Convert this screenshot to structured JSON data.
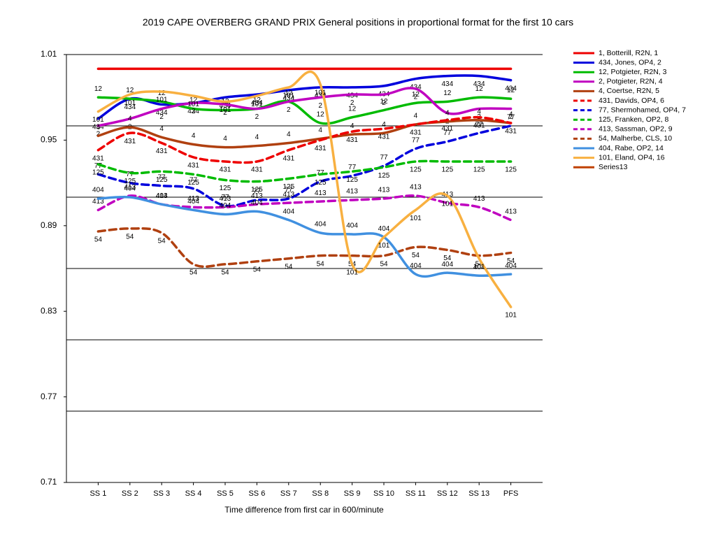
{
  "chart_data": {
    "type": "line",
    "title": "2019 CAPE OVERBERG GRAND PRIX  General positions in proportional format for the first 10 cars",
    "x_label": "Time difference from first car in 600/minute",
    "categories": [
      "SS 1",
      "SS 2",
      "SS 3",
      "SS 4",
      "SS 5",
      "SS 6",
      "SS 7",
      "SS 8",
      "SS 9",
      "SS 10",
      "SS 11",
      "SS 12",
      "SS 13",
      "PFS"
    ],
    "ylim": [
      0.71,
      1.01
    ],
    "yticks": [
      0.71,
      0.77,
      0.83,
      0.89,
      0.95,
      1.01
    ],
    "ygrid": [
      0.76,
      0.81,
      0.86,
      0.91,
      0.96,
      1.01
    ],
    "legend": "right",
    "series": [
      {
        "name": "1, Botterill, R2N, 1",
        "color": "#ee0000",
        "dash": false,
        "values": [
          1.0,
          1.0,
          1.0,
          1.0,
          1.0,
          1.0,
          1.0,
          1.0,
          1.0,
          1.0,
          1.0,
          1.0,
          1.0,
          1.0
        ]
      },
      {
        "name": "434, Jones, OP4, 2",
        "color": "#0000dd",
        "dash": false,
        "point_label": "434",
        "values": [
          0.965,
          0.979,
          0.975,
          0.976,
          0.98,
          0.982,
          0.985,
          0.987,
          0.987,
          0.988,
          0.993,
          0.995,
          0.995,
          0.992
        ]
      },
      {
        "name": "12, Potgieter, R2N, 3",
        "color": "#00bb00",
        "dash": false,
        "point_label": "12",
        "values": [
          0.98,
          0.979,
          0.977,
          0.972,
          0.971,
          0.972,
          0.977,
          0.962,
          0.966,
          0.971,
          0.976,
          0.977,
          0.98,
          0.979
        ]
      },
      {
        "name": "2, Potgieter, R2N, 4",
        "color": "#c000c0",
        "dash": false,
        "point_label": "2",
        "values": [
          0.96,
          0.965,
          0.972,
          0.976,
          0.975,
          0.972,
          0.977,
          0.98,
          0.982,
          0.982,
          0.986,
          0.969,
          0.972,
          0.972
        ]
      },
      {
        "name": "4, Coertse, R2N, 5",
        "color": "#b04010",
        "dash": false,
        "point_label": "4",
        "values": [
          0.953,
          0.959,
          0.952,
          0.947,
          0.945,
          0.946,
          0.948,
          0.951,
          0.954,
          0.955,
          0.961,
          0.963,
          0.964,
          0.962
        ]
      },
      {
        "name": "431, Davids, OP4, 6",
        "color": "#ee0000",
        "dash": true,
        "point_label": "431",
        "values": [
          0.943,
          0.955,
          0.948,
          0.938,
          0.935,
          0.935,
          0.943,
          0.95,
          0.956,
          0.958,
          0.961,
          0.964,
          0.966,
          0.962
        ]
      },
      {
        "name": "77, Shermohamed, OP4, 7",
        "color": "#0000dd",
        "dash": true,
        "point_label": "77",
        "values": [
          0.926,
          0.92,
          0.918,
          0.916,
          0.904,
          0.908,
          0.909,
          0.921,
          0.925,
          0.932,
          0.944,
          0.949,
          0.955,
          0.96
        ]
      },
      {
        "name": "125, Franken, OP2, 8",
        "color": "#00bb00",
        "dash": true,
        "point_label": "125",
        "values": [
          0.933,
          0.927,
          0.928,
          0.926,
          0.922,
          0.921,
          0.923,
          0.926,
          0.928,
          0.931,
          0.935,
          0.935,
          0.935,
          0.935
        ]
      },
      {
        "name": "413, Sassman, OP2, 9",
        "color": "#c000c0",
        "dash": true,
        "point_label": "413",
        "values": [
          0.901,
          0.911,
          0.905,
          0.903,
          0.903,
          0.905,
          0.906,
          0.907,
          0.908,
          0.909,
          0.911,
          0.906,
          0.903,
          0.894
        ]
      },
      {
        "name": "54, Malherbe, CLS, 10",
        "color": "#b04010",
        "dash": true,
        "point_label": "54",
        "values": [
          0.886,
          0.888,
          0.885,
          0.863,
          0.863,
          0.865,
          0.867,
          0.869,
          0.869,
          0.869,
          0.875,
          0.873,
          0.869,
          0.871
        ]
      },
      {
        "name": "404, Rabe, OP2, 14",
        "color": "#4090e0",
        "dash": false,
        "point_label": "404",
        "values": [
          0.909,
          0.91,
          0.905,
          0.901,
          0.898,
          0.9,
          0.894,
          0.885,
          0.884,
          0.882,
          0.856,
          0.857,
          0.855,
          0.856
        ]
      },
      {
        "name": "101, Eland, OP4, 16",
        "color": "#f8b040",
        "dash": false,
        "point_label": "101",
        "values": [
          0.97,
          0.982,
          0.984,
          0.981,
          0.977,
          0.981,
          0.987,
          0.989,
          0.863,
          0.882,
          0.901,
          0.911,
          0.867,
          0.833
        ]
      },
      {
        "name": "Series13",
        "color": "#c04000",
        "dash": false,
        "values": [
          null,
          null,
          null,
          null,
          null,
          null,
          null,
          null,
          null,
          null,
          null,
          null,
          null,
          null
        ]
      }
    ]
  }
}
